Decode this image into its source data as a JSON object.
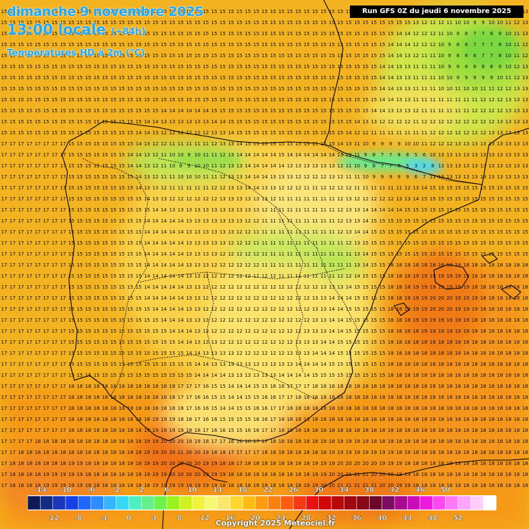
{
  "header": {
    "date": "dimanche 9 novembre 2025",
    "time": "13:00 locale",
    "lead": "(+84h)",
    "variable": "Températures HD à 2m (°C)"
  },
  "run_info": "Run GFS 0Z du jeudi 6 novembre 2025",
  "copyright": "Copyright 2025 Meteociel.fr",
  "legend": {
    "top_labels": [
      "-14",
      "-10",
      "-6",
      "-2",
      "2",
      "6",
      "10",
      "14",
      "18",
      "22",
      "26",
      "30",
      "34",
      "38",
      "42",
      "46",
      "50"
    ],
    "bottom_labels": [
      "-12",
      "-8",
      "-4",
      "0",
      "4",
      "8",
      "12",
      "16",
      "20",
      "24",
      "28",
      "32",
      "36",
      "40",
      "44",
      "48",
      "52"
    ],
    "colors": [
      "#0d1a55",
      "#142b82",
      "#1b37b8",
      "#1540e6",
      "#1f66ff",
      "#2e8cff",
      "#35b4ff",
      "#38d8f5",
      "#4ef0c2",
      "#66f08c",
      "#6cf24a",
      "#9af21c",
      "#d0f020",
      "#f2f23a",
      "#f7f772",
      "#f9e86c",
      "#ffd630",
      "#ffbd14",
      "#ff9c10",
      "#ff7e10",
      "#ff5a10",
      "#f63a18",
      "#e81010",
      "#d00808",
      "#b80808",
      "#a00810",
      "#880818",
      "#6e0828",
      "#7e0a62",
      "#a80a90",
      "#cc0ab8",
      "#ef18de",
      "#ff48f0",
      "#ff78f6",
      "#ffa4fa",
      "#ffcefc",
      "#ffffff"
    ]
  },
  "map": {
    "region": "Péninsule Ibérique",
    "field": "2m temperature (°C)",
    "value_range": [
      0,
      23
    ]
  }
}
